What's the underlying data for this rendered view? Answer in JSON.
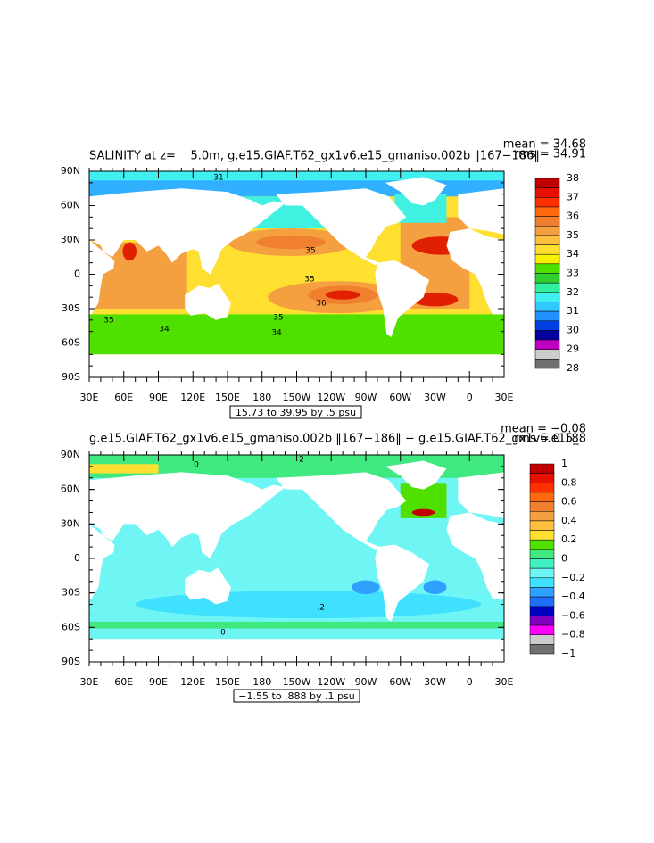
{
  "panels": [
    {
      "title": "SALINITY at z=    5.0m, g.e15.GIAF.T62_gx1v6.e15_gmaniso.002b ‖167−186‖",
      "mean": "mean = 34.68",
      "rms": "rms = 34.91",
      "lat_labels": [
        "90N",
        "60N",
        "30N",
        "0",
        "30S",
        "60S",
        "90S"
      ],
      "lon_labels": [
        "30E",
        "60E",
        "90E",
        "120E",
        "150E",
        "180",
        "150W",
        "120W",
        "90W",
        "60W",
        "30W",
        "0",
        "30E"
      ],
      "range_note": "15.73 to 39.95 by .5 psu",
      "colorbar_labels": [
        "38",
        "37",
        "36",
        "35",
        "34",
        "33",
        "32",
        "31",
        "30",
        "29",
        "28"
      ],
      "colorbar_colors": [
        "#c00000",
        "#e81000",
        "#ff3000",
        "#ff6a10",
        "#f08030",
        "#f5a040",
        "#ffc040",
        "#ffe030",
        "#f8f000",
        "#50e000",
        "#30d030",
        "#30f0a0",
        "#40f0f0",
        "#30c8ff",
        "#2090ff",
        "#0040e0",
        "#0000a0",
        "#c000c0",
        "#cccccc",
        "#707070"
      ],
      "contour_labels": [
        "31",
        "35",
        "35",
        "36",
        "35",
        "34",
        "35",
        "34"
      ]
    },
    {
      "title": "g.e15.GIAF.T62_gx1v6.e15_gmaniso.002b ‖167−186‖ − g.e15.GIAF.T62_gx1v6.e15_",
      "mean": "mean = −0.08",
      "rms": "rms = 0.188",
      "lat_labels": [
        "90N",
        "60N",
        "30N",
        "0",
        "30S",
        "60S",
        "90S"
      ],
      "lon_labels": [
        "30E",
        "60E",
        "90E",
        "120E",
        "150E",
        "180",
        "150W",
        "120W",
        "90W",
        "60W",
        "30W",
        "0",
        "30E"
      ],
      "range_note": "−1.55 to .888 by .1 psu",
      "colorbar_labels": [
        "1",
        "0.8",
        "0.6",
        "0.4",
        "0.2",
        "0",
        "−0.2",
        "−0.4",
        "−0.6",
        "−0.8",
        "−1"
      ],
      "colorbar_colors": [
        "#c00000",
        "#e81000",
        "#ff3000",
        "#ff6a10",
        "#f08030",
        "#f5a040",
        "#ffc040",
        "#ffe030",
        "#50e000",
        "#40e880",
        "#40f0c0",
        "#70f5f5",
        "#40e0ff",
        "#30a0ff",
        "#2070ff",
        "#0000c0",
        "#8000c0",
        "#ff00ff",
        "#cccccc",
        "#707070"
      ],
      "contour_labels": [
        "0",
        "2",
        "−.2",
        "0"
      ]
    }
  ]
}
